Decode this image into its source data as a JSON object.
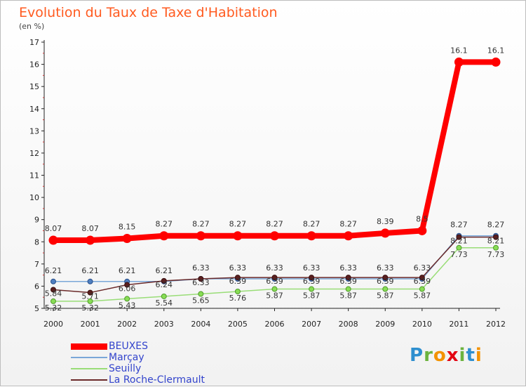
{
  "title": "Evolution du Taux de Taxe d'Habitation",
  "subtitle": "(en %)",
  "logo": {
    "text": "Proxiti",
    "colors": [
      "#2e8fcf",
      "#6cb33e",
      "#f39200",
      "#e30613",
      "#6cb33e",
      "#2e8fcf",
      "#f39200"
    ]
  },
  "chart_data": {
    "type": "line",
    "title": "Evolution du Taux de Taxe d'Habitation",
    "ylabel": "(en %)",
    "xlabel": "",
    "x": [
      "2000",
      "2001",
      "2002",
      "2003",
      "2004",
      "2005",
      "2006",
      "2007",
      "2008",
      "2009",
      "2010",
      "2011",
      "2012"
    ],
    "ylim": [
      5,
      17
    ],
    "yticks": [
      "5",
      "6",
      "7",
      "8",
      "9",
      "10",
      "11",
      "12",
      "13",
      "14",
      "15",
      "16",
      "17"
    ],
    "grid": false,
    "legend_position": "bottom-left",
    "series": [
      {
        "name": "BEUXES",
        "color": "#ff0000",
        "values": [
          8.07,
          8.07,
          8.15,
          8.27,
          8.27,
          8.27,
          8.27,
          8.27,
          8.27,
          8.39,
          8.5,
          16.1,
          16.1
        ],
        "labels": [
          "8.07",
          "8.07",
          "8.15",
          "8.27",
          "8.27",
          "8.27",
          "8.27",
          "8.27",
          "8.27",
          "8.39",
          "8.5",
          "16.1",
          "16.1"
        ]
      },
      {
        "name": "Marçay",
        "color": "#7aa7d8",
        "values": [
          6.21,
          6.21,
          6.21,
          6.21,
          6.33,
          6.33,
          6.33,
          6.33,
          6.33,
          6.33,
          6.33,
          8.27,
          8.27
        ],
        "labels": [
          "6.21",
          "6.21",
          "6.21",
          "6.21",
          "6.33",
          "6.33",
          "6.33",
          "6.33",
          "6.33",
          "6.33",
          "6.33",
          "8.27",
          "8.27"
        ]
      },
      {
        "name": "Seuilly",
        "color": "#99dd77",
        "values": [
          5.32,
          5.32,
          5.43,
          5.54,
          5.65,
          5.76,
          5.87,
          5.87,
          5.87,
          5.87,
          5.87,
          7.73,
          7.73
        ],
        "labels": [
          "5.32",
          "5.32",
          "5.43",
          "5.54",
          "5.65",
          "5.76",
          "5.87",
          "5.87",
          "5.87",
          "5.87",
          "5.87",
          "7.73",
          "7.73"
        ]
      },
      {
        "name": "La Roche-Clermault",
        "color": "#6b2a2a",
        "values": [
          5.84,
          5.71,
          6.06,
          6.24,
          6.33,
          6.39,
          6.39,
          6.39,
          6.39,
          6.39,
          6.39,
          8.21,
          8.21
        ],
        "labels": [
          "5.84",
          "5.71",
          "6.06",
          "6.24",
          "6.33",
          "6.39",
          "6.39",
          "6.39",
          "6.39",
          "6.39",
          "6.39",
          "8.21",
          "8.21"
        ]
      }
    ]
  }
}
